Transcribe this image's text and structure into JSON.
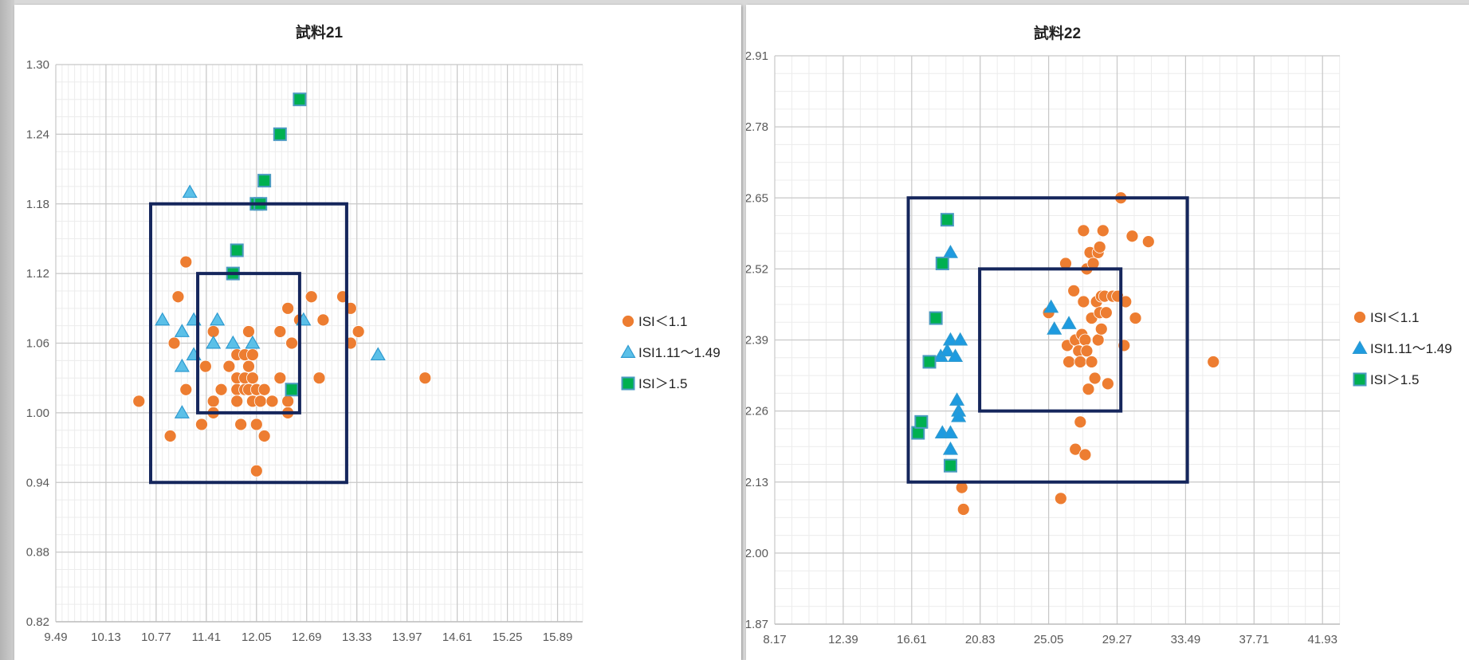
{
  "chart_data": [
    {
      "type": "scatter",
      "title": "試料21",
      "xlabel": "",
      "ylabel": "",
      "xlim": [
        9.49,
        16.21
      ],
      "ylim": [
        0.82,
        1.3
      ],
      "x_ticks": [
        "9.49",
        "10.13",
        "10.77",
        "11.41",
        "12.05",
        "12.69",
        "13.33",
        "13.97",
        "14.61",
        "15.25",
        "15.89"
      ],
      "y_ticks": [
        "0.82",
        "0.88",
        "0.94",
        "1.00",
        "1.06",
        "1.12",
        "1.18",
        "1.24",
        "1.30"
      ],
      "grid": true,
      "legend": "right",
      "rectangles": [
        {
          "x0": 10.7,
          "x1": 13.2,
          "y0": 0.94,
          "y1": 1.18
        },
        {
          "x0": 11.3,
          "x1": 12.6,
          "y0": 1.0,
          "y1": 1.12
        }
      ],
      "series": [
        {
          "name": "ISI＜1.1",
          "marker": "circle",
          "color": "#ed7d31",
          "points": [
            [
              10.55,
              1.01
            ],
            [
              10.95,
              0.98
            ],
            [
              11.0,
              1.06
            ],
            [
              11.05,
              1.1
            ],
            [
              11.15,
              1.13
            ],
            [
              11.15,
              1.02
            ],
            [
              11.35,
              0.99
            ],
            [
              11.4,
              1.04
            ],
            [
              11.5,
              1.07
            ],
            [
              11.5,
              1.01
            ],
            [
              11.5,
              1.0
            ],
            [
              11.6,
              1.02
            ],
            [
              11.7,
              1.04
            ],
            [
              11.8,
              1.05
            ],
            [
              11.8,
              1.03
            ],
            [
              11.8,
              1.02
            ],
            [
              11.8,
              1.01
            ],
            [
              11.85,
              0.99
            ],
            [
              11.9,
              1.05
            ],
            [
              11.9,
              1.03
            ],
            [
              11.9,
              1.02
            ],
            [
              11.95,
              1.07
            ],
            [
              11.95,
              1.04
            ],
            [
              11.95,
              1.02
            ],
            [
              12.0,
              1.05
            ],
            [
              12.0,
              1.03
            ],
            [
              12.0,
              1.01
            ],
            [
              12.05,
              1.02
            ],
            [
              12.05,
              0.99
            ],
            [
              12.05,
              0.95
            ],
            [
              12.1,
              1.01
            ],
            [
              12.15,
              1.02
            ],
            [
              12.15,
              0.98
            ],
            [
              12.25,
              1.01
            ],
            [
              12.35,
              1.07
            ],
            [
              12.35,
              1.03
            ],
            [
              12.45,
              1.09
            ],
            [
              12.45,
              1.01
            ],
            [
              12.45,
              1.0
            ],
            [
              12.5,
              1.06
            ],
            [
              12.6,
              1.08
            ],
            [
              12.75,
              1.1
            ],
            [
              12.85,
              1.03
            ],
            [
              12.9,
              1.08
            ],
            [
              13.15,
              1.1
            ],
            [
              13.25,
              1.09
            ],
            [
              13.25,
              1.06
            ],
            [
              13.35,
              1.07
            ],
            [
              14.2,
              1.03
            ]
          ]
        },
        {
          "name": "ISI1.11～1.49",
          "marker": "triangle",
          "color": "#5bc0e8",
          "points": [
            [
              10.85,
              1.08
            ],
            [
              11.1,
              1.07
            ],
            [
              11.1,
              1.04
            ],
            [
              11.1,
              1.0
            ],
            [
              11.2,
              1.19
            ],
            [
              11.25,
              1.08
            ],
            [
              11.25,
              1.05
            ],
            [
              11.5,
              1.06
            ],
            [
              11.55,
              1.08
            ],
            [
              11.75,
              1.06
            ],
            [
              12.0,
              1.06
            ],
            [
              12.65,
              1.08
            ],
            [
              13.6,
              1.05
            ]
          ]
        },
        {
          "name": "ISI＞1.5",
          "marker": "square",
          "color": "#00b050",
          "points": [
            [
              11.75,
              1.12
            ],
            [
              11.8,
              1.14
            ],
            [
              12.05,
              1.18
            ],
            [
              12.1,
              1.18
            ],
            [
              12.15,
              1.2
            ],
            [
              12.35,
              1.24
            ],
            [
              12.6,
              1.27
            ],
            [
              12.5,
              1.02
            ]
          ]
        }
      ]
    },
    {
      "type": "scatter",
      "title": "試料22",
      "xlabel": "",
      "ylabel": "",
      "xlim": [
        8.17,
        43.0
      ],
      "ylim": [
        1.87,
        2.91
      ],
      "x_ticks": [
        "8.17",
        "12.39",
        "16.61",
        "20.83",
        "25.05",
        "29.27",
        "33.49",
        "37.71",
        "41.93"
      ],
      "y_ticks": [
        "1.87",
        "2.00",
        "2.13",
        "2.26",
        "2.39",
        "2.52",
        "2.65",
        "2.78",
        "2.91"
      ],
      "grid": true,
      "legend": "right",
      "rectangles": [
        {
          "x0": 16.4,
          "x1": 33.6,
          "y0": 2.13,
          "y1": 2.65
        },
        {
          "x0": 20.8,
          "x1": 29.5,
          "y0": 2.26,
          "y1": 2.52
        }
      ],
      "series": [
        {
          "name": "ISI＜1.1",
          "marker": "circle",
          "color": "#ed7d31",
          "points": [
            [
              19.7,
              2.12
            ],
            [
              19.8,
              2.08
            ],
            [
              25.05,
              2.44
            ],
            [
              25.8,
              2.1
            ],
            [
              26.1,
              2.53
            ],
            [
              26.2,
              2.38
            ],
            [
              26.3,
              2.35
            ],
            [
              26.6,
              2.48
            ],
            [
              26.7,
              2.39
            ],
            [
              26.7,
              2.19
            ],
            [
              26.9,
              2.37
            ],
            [
              27.0,
              2.35
            ],
            [
              27.0,
              2.24
            ],
            [
              27.1,
              2.4
            ],
            [
              27.2,
              2.59
            ],
            [
              27.2,
              2.46
            ],
            [
              27.3,
              2.39
            ],
            [
              27.3,
              2.18
            ],
            [
              27.4,
              2.52
            ],
            [
              27.4,
              2.37
            ],
            [
              27.5,
              2.3
            ],
            [
              27.6,
              2.55
            ],
            [
              27.7,
              2.43
            ],
            [
              27.7,
              2.35
            ],
            [
              27.8,
              2.53
            ],
            [
              27.9,
              2.32
            ],
            [
              28.0,
              2.46
            ],
            [
              28.1,
              2.55
            ],
            [
              28.1,
              2.39
            ],
            [
              28.2,
              2.56
            ],
            [
              28.2,
              2.44
            ],
            [
              28.3,
              2.47
            ],
            [
              28.3,
              2.41
            ],
            [
              28.4,
              2.59
            ],
            [
              28.5,
              2.47
            ],
            [
              28.6,
              2.44
            ],
            [
              28.7,
              2.31
            ],
            [
              29.0,
              2.47
            ],
            [
              29.3,
              2.47
            ],
            [
              29.5,
              2.65
            ],
            [
              29.7,
              2.38
            ],
            [
              29.8,
              2.46
            ],
            [
              30.2,
              2.58
            ],
            [
              30.4,
              2.43
            ],
            [
              31.2,
              2.57
            ],
            [
              35.2,
              2.35
            ]
          ]
        },
        {
          "name": "ISI1.11～1.49",
          "marker": "triangle",
          "color": "#1e9be0",
          "points": [
            [
              18.4,
              2.36
            ],
            [
              18.5,
              2.22
            ],
            [
              18.8,
              2.37
            ],
            [
              19.0,
              2.55
            ],
            [
              19.0,
              2.39
            ],
            [
              19.0,
              2.22
            ],
            [
              19.0,
              2.19
            ],
            [
              19.3,
              2.36
            ],
            [
              19.4,
              2.28
            ],
            [
              19.5,
              2.26
            ],
            [
              19.5,
              2.25
            ],
            [
              19.6,
              2.39
            ],
            [
              25.2,
              2.45
            ],
            [
              25.4,
              2.41
            ],
            [
              26.3,
              2.42
            ]
          ]
        },
        {
          "name": "ISI＞1.5",
          "marker": "square",
          "color": "#00b050",
          "points": [
            [
              17.0,
              2.22
            ],
            [
              17.2,
              2.24
            ],
            [
              17.7,
              2.35
            ],
            [
              18.1,
              2.43
            ],
            [
              18.5,
              2.53
            ],
            [
              18.8,
              2.61
            ],
            [
              19.0,
              2.16
            ]
          ]
        }
      ]
    }
  ]
}
